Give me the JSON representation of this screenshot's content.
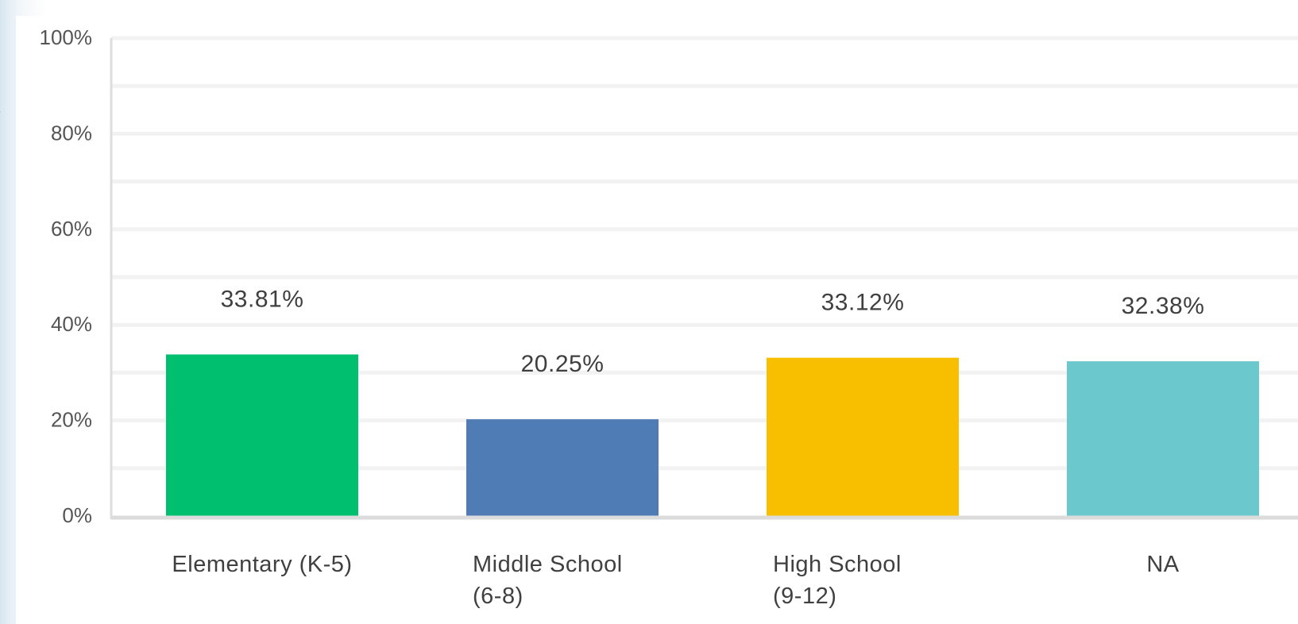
{
  "chart_data": {
    "type": "bar",
    "title": "",
    "xlabel": "",
    "ylabel": "",
    "ylim": [
      0,
      100
    ],
    "yticks": [
      "0%",
      "20%",
      "40%",
      "60%",
      "80%",
      "100%"
    ],
    "grid": true,
    "legend": "none",
    "categories": [
      [
        "Elementary (K-5)"
      ],
      [
        "Middle School",
        "(6-8)"
      ],
      [
        "High School",
        "(9-12)"
      ],
      [
        "NA"
      ]
    ],
    "values": [
      33.81,
      20.25,
      33.12,
      32.38
    ],
    "data_labels": [
      "33.81%",
      "20.25%",
      "33.12%",
      "32.38%"
    ],
    "colors": [
      "#00bf6f",
      "#507cb6",
      "#f8be00",
      "#6bc8cd"
    ]
  }
}
